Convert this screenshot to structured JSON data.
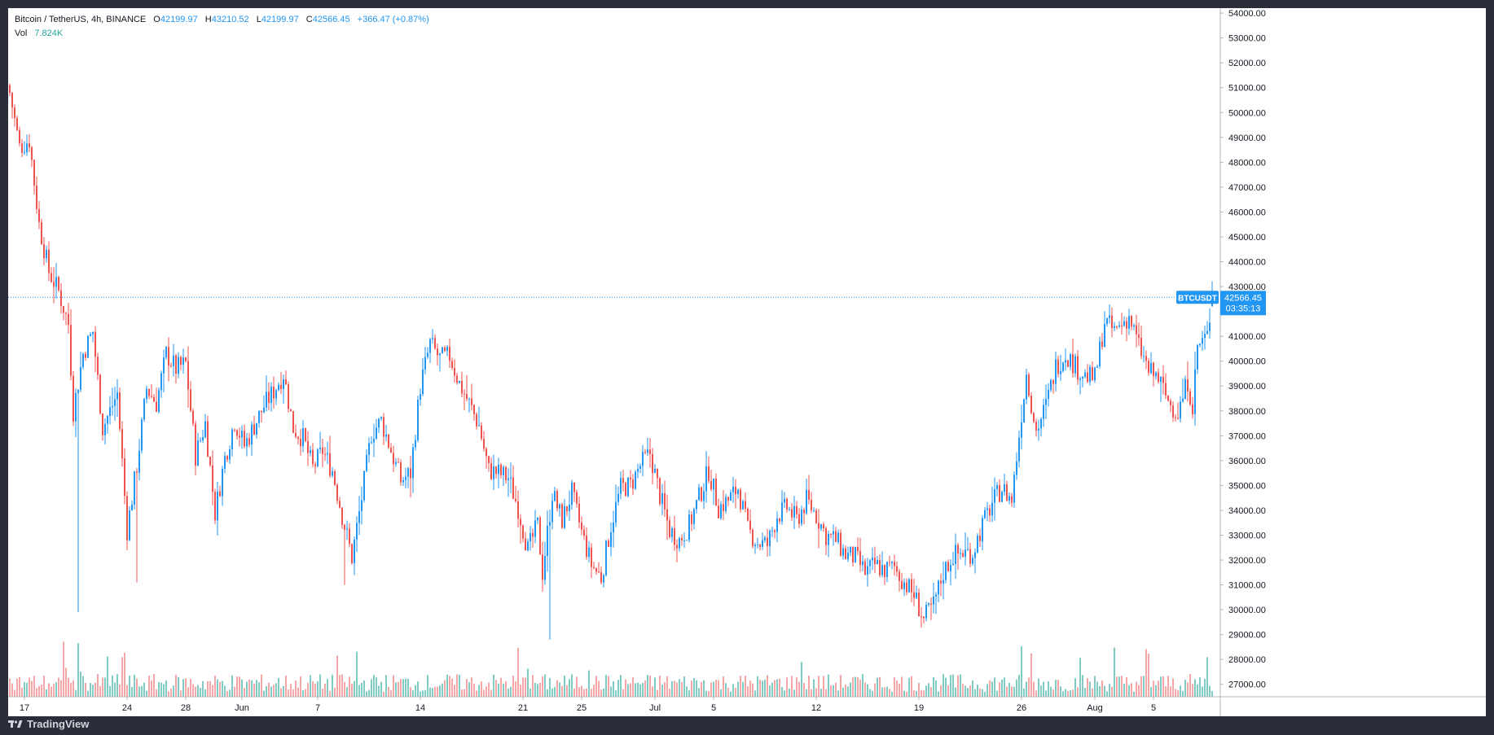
{
  "legend": {
    "symbol": "Bitcoin / TetherUS, 4h, BINANCE",
    "open_label": "O",
    "open": "42199.97",
    "high_label": "H",
    "high": "43210.52",
    "low_label": "L",
    "low": "42199.97",
    "close_label": "C",
    "close": "42566.45",
    "change": "+366.47 (+0.87%)",
    "vol_label": "Vol",
    "vol": "7.824K"
  },
  "price_tag": {
    "symbol": "BTCUSDT",
    "price": "42566.45",
    "countdown": "03:35:13"
  },
  "brand": "TradingView",
  "colors": {
    "up": "#2196f3",
    "down": "#ef5350",
    "vol_up": "#80cbc4",
    "vol_down": "#f5a6a6",
    "grid_text": "#131722",
    "background": "#2a2e39"
  },
  "chart_data": {
    "type": "candlestick",
    "symbol": "BTCUSDT",
    "interval": "4h",
    "exchange": "BINANCE",
    "current_price": 42566.45,
    "y_ticks": [
      27000,
      28000,
      29000,
      30000,
      31000,
      32000,
      33000,
      34000,
      35000,
      36000,
      37000,
      38000,
      39000,
      40000,
      41000,
      42000,
      43000,
      44000,
      45000,
      46000,
      47000,
      48000,
      49000,
      50000,
      51000,
      52000,
      53000,
      54000
    ],
    "y_tick_labels": [
      "27000.00",
      "28000.00",
      "29000.00",
      "30000.00",
      "31000.00",
      "32000.00",
      "33000.00",
      "34000.00",
      "35000.00",
      "36000.00",
      "37000.00",
      "38000.00",
      "39000.00",
      "40000.00",
      "41000.00",
      "42000.00",
      "43000.00",
      "44000.00",
      "45000.00",
      "46000.00",
      "47000.00",
      "48000.00",
      "49000.00",
      "50000.00",
      "51000.00",
      "52000.00",
      "53000.00",
      "54000.00"
    ],
    "ylim": [
      26500,
      54200
    ],
    "x_labels": [
      {
        "label": "17",
        "bar": 6
      },
      {
        "label": "24",
        "bar": 48
      },
      {
        "label": "28",
        "bar": 72
      },
      {
        "label": "Jun",
        "bar": 95
      },
      {
        "label": "7",
        "bar": 126
      },
      {
        "label": "14",
        "bar": 168
      },
      {
        "label": "21",
        "bar": 210
      },
      {
        "label": "25",
        "bar": 234
      },
      {
        "label": "Jul",
        "bar": 264
      },
      {
        "label": "5",
        "bar": 288
      },
      {
        "label": "12",
        "bar": 330
      },
      {
        "label": "19",
        "bar": 372
      },
      {
        "label": "26",
        "bar": 414
      },
      {
        "label": "Aug",
        "bar": 444
      },
      {
        "label": "5",
        "bar": 468
      }
    ],
    "close_path": [
      [
        0,
        50800
      ],
      [
        4,
        48600
      ],
      [
        8,
        48900
      ],
      [
        12,
        45500
      ],
      [
        16,
        43600
      ],
      [
        20,
        42800
      ],
      [
        24,
        41500
      ],
      [
        26,
        38000
      ],
      [
        30,
        40300
      ],
      [
        34,
        41200
      ],
      [
        38,
        37300
      ],
      [
        44,
        38700
      ],
      [
        48,
        33200
      ],
      [
        52,
        35800
      ],
      [
        56,
        38900
      ],
      [
        60,
        38300
      ],
      [
        64,
        40300
      ],
      [
        68,
        39700
      ],
      [
        72,
        39900
      ],
      [
        76,
        36200
      ],
      [
        80,
        37500
      ],
      [
        84,
        33900
      ],
      [
        88,
        36100
      ],
      [
        92,
        37600
      ],
      [
        96,
        36600
      ],
      [
        100,
        37400
      ],
      [
        104,
        38200
      ],
      [
        108,
        38800
      ],
      [
        112,
        39500
      ],
      [
        116,
        37300
      ],
      [
        120,
        36900
      ],
      [
        124,
        35700
      ],
      [
        128,
        36400
      ],
      [
        132,
        35600
      ],
      [
        136,
        33800
      ],
      [
        140,
        32100
      ],
      [
        144,
        34500
      ],
      [
        148,
        37100
      ],
      [
        152,
        37600
      ],
      [
        156,
        36400
      ],
      [
        160,
        35200
      ],
      [
        164,
        35500
      ],
      [
        168,
        39000
      ],
      [
        172,
        40700
      ],
      [
        176,
        40100
      ],
      [
        180,
        40200
      ],
      [
        184,
        39100
      ],
      [
        188,
        38300
      ],
      [
        192,
        37400
      ],
      [
        196,
        35600
      ],
      [
        200,
        35500
      ],
      [
        204,
        35300
      ],
      [
        208,
        34100
      ],
      [
        212,
        32400
      ],
      [
        216,
        33400
      ],
      [
        218,
        31500
      ],
      [
        222,
        34700
      ],
      [
        226,
        33600
      ],
      [
        230,
        34700
      ],
      [
        234,
        33100
      ],
      [
        238,
        31800
      ],
      [
        242,
        31300
      ],
      [
        246,
        33400
      ],
      [
        250,
        34900
      ],
      [
        254,
        35000
      ],
      [
        258,
        35800
      ],
      [
        262,
        36300
      ],
      [
        266,
        34600
      ],
      [
        270,
        33200
      ],
      [
        274,
        32800
      ],
      [
        278,
        33400
      ],
      [
        282,
        34500
      ],
      [
        286,
        35600
      ],
      [
        290,
        34100
      ],
      [
        294,
        34400
      ],
      [
        298,
        34900
      ],
      [
        302,
        33200
      ],
      [
        306,
        32700
      ],
      [
        310,
        32600
      ],
      [
        314,
        33800
      ],
      [
        318,
        34100
      ],
      [
        322,
        33600
      ],
      [
        326,
        34400
      ],
      [
        330,
        33800
      ],
      [
        334,
        33000
      ],
      [
        338,
        32800
      ],
      [
        342,
        32200
      ],
      [
        346,
        32100
      ],
      [
        350,
        31500
      ],
      [
        354,
        31800
      ],
      [
        358,
        31600
      ],
      [
        362,
        31700
      ],
      [
        366,
        31100
      ],
      [
        370,
        30600
      ],
      [
        374,
        29600
      ],
      [
        378,
        30200
      ],
      [
        382,
        31500
      ],
      [
        386,
        32200
      ],
      [
        390,
        32300
      ],
      [
        394,
        32300
      ],
      [
        398,
        33400
      ],
      [
        402,
        34300
      ],
      [
        406,
        34900
      ],
      [
        410,
        34400
      ],
      [
        414,
        37900
      ],
      [
        416,
        39500
      ],
      [
        420,
        37200
      ],
      [
        424,
        38200
      ],
      [
        428,
        39800
      ],
      [
        432,
        40300
      ],
      [
        436,
        39800
      ],
      [
        440,
        39400
      ],
      [
        444,
        39300
      ],
      [
        448,
        41600
      ],
      [
        452,
        41200
      ],
      [
        456,
        41600
      ],
      [
        458,
        41800
      ],
      [
        462,
        40600
      ],
      [
        466,
        39600
      ],
      [
        470,
        39300
      ],
      [
        474,
        38400
      ],
      [
        478,
        37900
      ],
      [
        482,
        39200
      ],
      [
        484,
        38200
      ],
      [
        486,
        40600
      ],
      [
        488,
        40800
      ],
      [
        490,
        41000
      ],
      [
        492,
        42566
      ]
    ],
    "last_bar": {
      "open": 42199.97,
      "high": 43210.52,
      "low": 42199.97,
      "close": 42566.45,
      "volume": "7.824K"
    }
  }
}
